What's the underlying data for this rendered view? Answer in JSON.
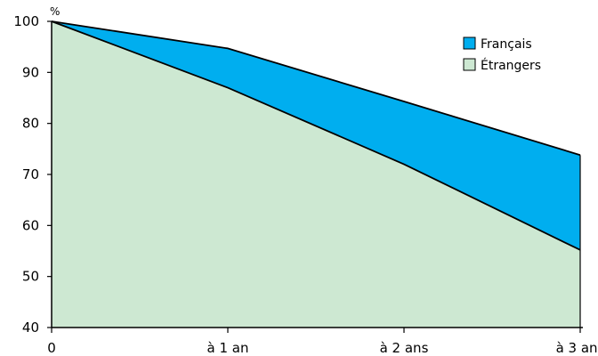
{
  "chart_data": {
    "type": "area",
    "title": "",
    "xlabel": "",
    "ylabel": "",
    "y_unit": "%",
    "categories": [
      "0",
      "à 1 an",
      "à 2 ans",
      "à 3 ans"
    ],
    "ylim": [
      40,
      100
    ],
    "yticks": [
      "40",
      "50",
      "60",
      "70",
      "80",
      "90",
      "100"
    ],
    "grid": false,
    "legend_position": "top-right",
    "series": [
      {
        "name": "Français",
        "values": [
          100,
          94.7,
          84.3,
          73.8
        ],
        "color": "#00aeef"
      },
      {
        "name": "Étrangers",
        "values": [
          100,
          87.0,
          72.0,
          55.2
        ],
        "color": "#cde8d2"
      }
    ]
  }
}
